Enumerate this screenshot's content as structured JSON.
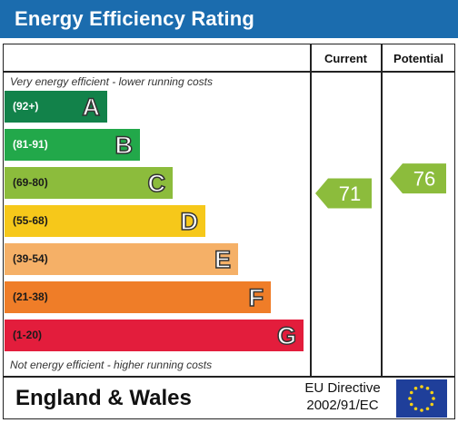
{
  "header": {
    "title": "Energy Efficiency Rating"
  },
  "columns": {
    "current": "Current",
    "potential": "Potential"
  },
  "notes": {
    "top": "Very energy efficient - lower running costs",
    "bottom": "Not energy efficient - higher running costs"
  },
  "footer": {
    "region": "England & Wales",
    "directive_line1": "EU Directive",
    "directive_line2": "2002/91/EC"
  },
  "chart_data": {
    "type": "bar",
    "categories": [
      "A",
      "B",
      "C",
      "D",
      "E",
      "F",
      "G"
    ],
    "bands": [
      {
        "letter": "A",
        "range": "(92+)",
        "color": "#12824a",
        "text_color": "#ffffff"
      },
      {
        "letter": "B",
        "range": "(81-91)",
        "color": "#22a84a",
        "text_color": "#ffffff"
      },
      {
        "letter": "C",
        "range": "(69-80)",
        "color": "#8cbc3c",
        "text_color": "#1a1a1a"
      },
      {
        "letter": "D",
        "range": "(55-68)",
        "color": "#f6c81a",
        "text_color": "#1a1a1a"
      },
      {
        "letter": "E",
        "range": "(39-54)",
        "color": "#f5b067",
        "text_color": "#1a1a1a"
      },
      {
        "letter": "F",
        "range": "(21-38)",
        "color": "#ef7d28",
        "text_color": "#1a1a1a"
      },
      {
        "letter": "G",
        "range": "(1-20)",
        "color": "#e31d3c",
        "text_color": "#1a1a1a"
      }
    ],
    "current": {
      "value": 71,
      "band": "C",
      "color": "#8cbc3c"
    },
    "potential": {
      "value": 76,
      "band": "C",
      "color": "#8cbc3c"
    }
  }
}
